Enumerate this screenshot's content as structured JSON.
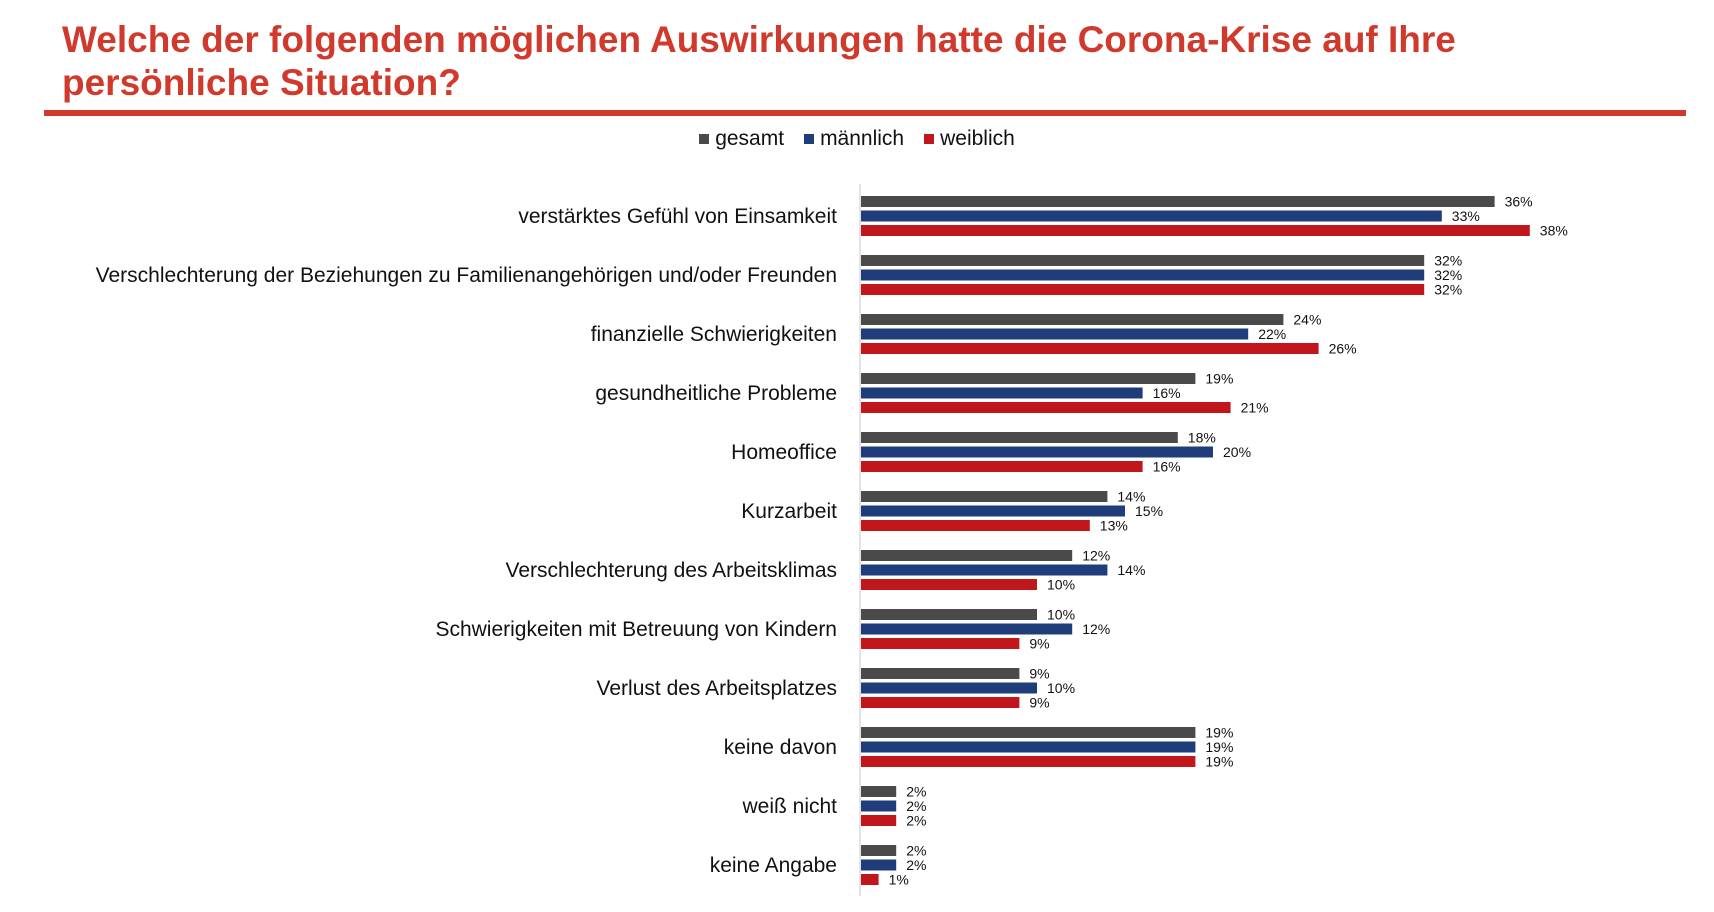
{
  "title": "Welche der folgenden möglichen Auswirkungen hatte die Corona-Krise auf Ihre persönliche Situation?",
  "colors": {
    "title": "#d03a2c",
    "gesamt": "#4a4a4a",
    "maennlich": "#1f3d7a",
    "weiblich": "#c0161c"
  },
  "legend": [
    {
      "label": "gesamt",
      "color": "#4a4a4a"
    },
    {
      "label": "männlich",
      "color": "#1f3d7a"
    },
    {
      "label": "weiblich",
      "color": "#c0161c"
    }
  ],
  "chart_data": {
    "type": "bar",
    "orientation": "horizontal",
    "title": "Welche der folgenden möglichen Auswirkungen hatte die Corona-Krise auf Ihre persönliche Situation?",
    "categories": [
      "verstärktes Gefühl von Einsamkeit",
      "Verschlechterung der Beziehungen zu Familienangehörigen und/oder Freunden",
      "finanzielle Schwierigkeiten",
      "gesundheitliche Probleme",
      "Homeoffice",
      "Kurzarbeit",
      "Verschlechterung des Arbeitsklimas",
      "Schwierigkeiten mit Betreuung von Kindern",
      "Verlust des Arbeitsplatzes",
      "keine davon",
      "weiß nicht",
      "keine Angabe"
    ],
    "series": [
      {
        "name": "gesamt",
        "color": "#4a4a4a",
        "values": [
          36,
          32,
          24,
          19,
          18,
          14,
          12,
          10,
          9,
          19,
          2,
          2
        ]
      },
      {
        "name": "männlich",
        "color": "#1f3d7a",
        "values": [
          33,
          32,
          22,
          16,
          20,
          15,
          14,
          12,
          10,
          19,
          2,
          2
        ]
      },
      {
        "name": "weiblich",
        "color": "#c0161c",
        "values": [
          38,
          32,
          26,
          21,
          16,
          13,
          10,
          9,
          9,
          19,
          2,
          1
        ]
      }
    ],
    "value_suffix": "%",
    "legend_position": "top",
    "grid": false
  }
}
